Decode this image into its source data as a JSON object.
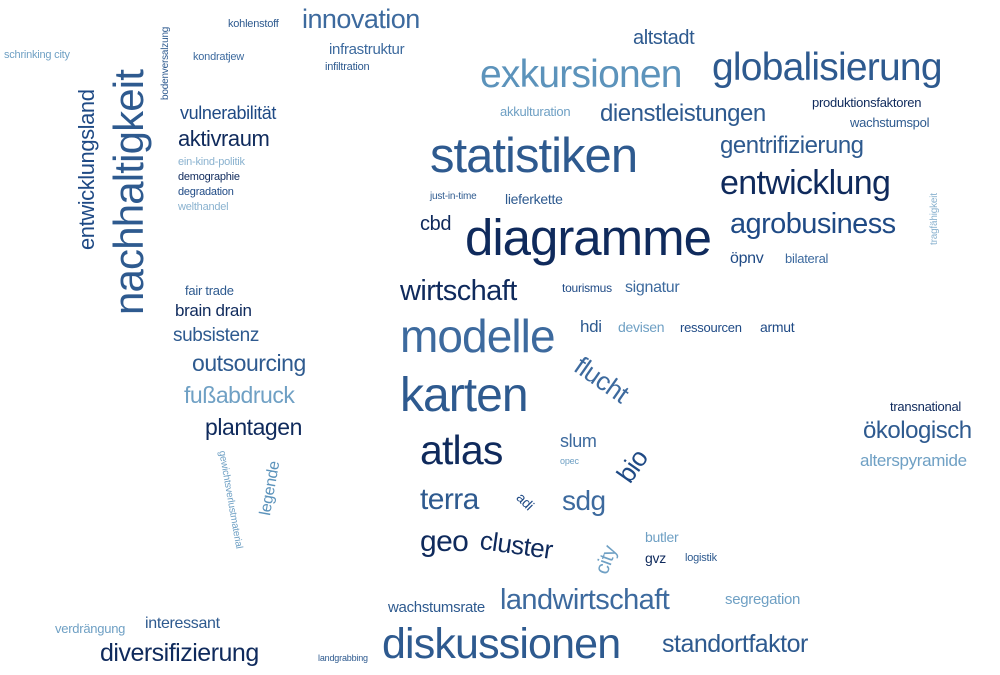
{
  "palette": {
    "navy": "#0f2a5c",
    "dark": "#1f4a85",
    "mid": "#2e5a8f",
    "blue": "#3d6a9e",
    "light": "#6fa0c4",
    "pale": "#8ab2cf"
  },
  "words": [
    {
      "text": "kohlenstoff",
      "color": "#2e5a8f"
    },
    {
      "text": "innovation",
      "color": "#3d6a9e"
    },
    {
      "text": "infrastruktur",
      "color": "#3d6a9e"
    },
    {
      "text": "infiltration",
      "color": "#2e5a8f"
    },
    {
      "text": "kondratjew",
      "color": "#3d6a9e"
    },
    {
      "text": "schrinking city",
      "color": "#6fa0c4"
    },
    {
      "text": "entwicklungsland",
      "color": "#1f4a85"
    },
    {
      "text": "nachhaltigkeit",
      "color": "#2e5a8f"
    },
    {
      "text": "bodenversalzung",
      "color": "#2e5a8f"
    },
    {
      "text": "vulnerabilität",
      "color": "#1f4a85"
    },
    {
      "text": "aktivraum",
      "color": "#0f2a5c"
    },
    {
      "text": "ein-kind-politik",
      "color": "#8ab2cf"
    },
    {
      "text": "demographie",
      "color": "#0f2a5c"
    },
    {
      "text": "degradation",
      "color": "#1f4a85"
    },
    {
      "text": "welthandel",
      "color": "#8ab2cf"
    },
    {
      "text": "altstadt",
      "color": "#2e5a8f"
    },
    {
      "text": "exkursionen",
      "color": "#5c93bb"
    },
    {
      "text": "globalisierung",
      "color": "#2e5a8f"
    },
    {
      "text": "produktionsfaktoren",
      "color": "#0f2a5c"
    },
    {
      "text": "akkulturation",
      "color": "#6fa0c4"
    },
    {
      "text": "dienstleistungen",
      "color": "#2e5a8f"
    },
    {
      "text": "statistiken",
      "color": "#2e5a8f"
    },
    {
      "text": "wachstumspol",
      "color": "#2e5a8f"
    },
    {
      "text": "gentrifizierung",
      "color": "#2e5a8f"
    },
    {
      "text": "just-in-time",
      "color": "#2e5a8f"
    },
    {
      "text": "lieferkette",
      "color": "#2e5a8f"
    },
    {
      "text": "entwicklung",
      "color": "#0f2a5c"
    },
    {
      "text": "tragfähigkeit",
      "color": "#8ab2cf"
    },
    {
      "text": "diagramme",
      "color": "#0f2a5c"
    },
    {
      "text": "cbd",
      "color": "#0f2a5c"
    },
    {
      "text": "wirtschaft",
      "color": "#0f2a5c"
    },
    {
      "text": "öpnv",
      "color": "#1f4a85"
    },
    {
      "text": "agrobusiness",
      "color": "#1f4a85"
    },
    {
      "text": "tourismus",
      "color": "#1f4a85"
    },
    {
      "text": "modelle",
      "color": "#3d6a9e"
    },
    {
      "text": "signatur",
      "color": "#3d6a9e"
    },
    {
      "text": "bilateral",
      "color": "#3d6a9e"
    },
    {
      "text": "hdi",
      "color": "#2e5a8f"
    },
    {
      "text": "devisen",
      "color": "#6fa0c4"
    },
    {
      "text": "ressourcen",
      "color": "#1f4a85"
    },
    {
      "text": "armut",
      "color": "#1f4a85"
    },
    {
      "text": "karten",
      "color": "#2e5a8f"
    },
    {
      "text": "flucht",
      "color": "#3d6a9e"
    },
    {
      "text": "slum",
      "color": "#3d6a9e"
    },
    {
      "text": "opec",
      "color": "#6fa0c4"
    },
    {
      "text": "atlas",
      "color": "#0f2a5c"
    },
    {
      "text": "bio",
      "color": "#1f4a85"
    },
    {
      "text": "terra",
      "color": "#2e5a8f"
    },
    {
      "text": "adi",
      "color": "#1f4a85"
    },
    {
      "text": "geo",
      "color": "#0f2a5c"
    },
    {
      "text": "sdg",
      "color": "#3d6a9e"
    },
    {
      "text": "cluster",
      "color": "#0f2a5c"
    },
    {
      "text": "city",
      "color": "#6fa0c4"
    },
    {
      "text": "butler",
      "color": "#6fa0c4"
    },
    {
      "text": "gvz",
      "color": "#0f2a5c"
    },
    {
      "text": "logistik",
      "color": "#2e5a8f"
    },
    {
      "text": "fair trade",
      "color": "#2e5a8f"
    },
    {
      "text": "brain drain",
      "color": "#0f2a5c"
    },
    {
      "text": "subsistenz",
      "color": "#2e5a8f"
    },
    {
      "text": "outsourcing",
      "color": "#2e5a8f"
    },
    {
      "text": "fußabdruck",
      "color": "#6fa0c4"
    },
    {
      "text": "plantagen",
      "color": "#0f2a5c"
    },
    {
      "text": "gewichtsverlustmaterial",
      "color": "#6fa0c4"
    },
    {
      "text": "legende",
      "color": "#5c93bb"
    },
    {
      "text": "transnational",
      "color": "#0f2a5c"
    },
    {
      "text": "ökologisch",
      "color": "#2e5a8f"
    },
    {
      "text": "alterspyramide",
      "color": "#6fa0c4"
    },
    {
      "text": "wachstumsrate",
      "color": "#2e5a8f"
    },
    {
      "text": "landwirtschaft",
      "color": "#3d6a9e"
    },
    {
      "text": "segregation",
      "color": "#6fa0c4"
    },
    {
      "text": "verdrängung",
      "color": "#6fa0c4"
    },
    {
      "text": "interessant",
      "color": "#2e5a8f"
    },
    {
      "text": "diversifizierung",
      "color": "#0f2a5c"
    },
    {
      "text": "landgrabbing",
      "color": "#2e5a8f"
    },
    {
      "text": "diskussionen",
      "color": "#2e5a8f"
    },
    {
      "text": "standortfaktor",
      "color": "#2e5a8f"
    }
  ]
}
